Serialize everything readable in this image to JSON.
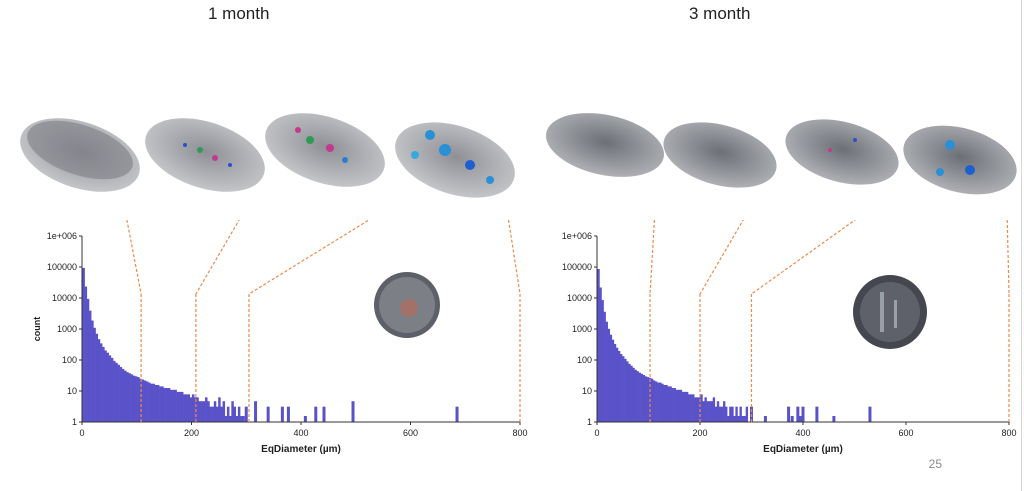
{
  "panels": [
    {
      "title": "1 month",
      "sample_shape": "round-tablet-cross-section",
      "chart_data": {
        "type": "bar",
        "xlabel": "EqDiameter (µm)",
        "ylabel": "count",
        "yscale": "log",
        "xlim": [
          0,
          800
        ],
        "ylim": [
          1,
          1000000
        ],
        "x_ticks": [
          "0",
          "200",
          "400",
          "600",
          "800"
        ],
        "y_ticks": [
          "1",
          "10",
          "100",
          "1000",
          "10000",
          "100000",
          "1e+006"
        ],
        "series": [
          {
            "color": "#5a52c8",
            "x": [
              3,
              7,
              11,
              15,
              19,
              23,
              27,
              31,
              35,
              39,
              43,
              47,
              51,
              55,
              59,
              63,
              67,
              71,
              75,
              79,
              83,
              87,
              91,
              95,
              99,
              103,
              107,
              111,
              115,
              119,
              123,
              127,
              131,
              135,
              139,
              143,
              147,
              151,
              155,
              159,
              163,
              167,
              171,
              175,
              179,
              183,
              187,
              191,
              195,
              199,
              203,
              207,
              211,
              215,
              219,
              223,
              227,
              231,
              235,
              239,
              243,
              247,
              251,
              255,
              259,
              263,
              267,
              271,
              275,
              279,
              283,
              287,
              291,
              295,
              300,
              317,
              340,
              366,
              377,
              408,
              427,
              442,
              495,
              685
            ],
            "values": [
              60000,
              15000,
              6000,
              2500,
              1200,
              700,
              450,
              300,
              220,
              170,
              130,
              110,
              90,
              75,
              60,
              52,
              45,
              38,
              33,
              29,
              26,
              24,
              22,
              20,
              19,
              18,
              16,
              15,
              14,
              13,
              12,
              11,
              11,
              10,
              10,
              9,
              9,
              8,
              8,
              8,
              7,
              7,
              7,
              6,
              6,
              6,
              5,
              5,
              5,
              4,
              5,
              4,
              4,
              3,
              3,
              3,
              4,
              3,
              2,
              2,
              3,
              2,
              4,
              2,
              3,
              1,
              2,
              1,
              3,
              2,
              1,
              2,
              1,
              1,
              2,
              3,
              2,
              2,
              2,
              1,
              2,
              2,
              3,
              2
            ]
          }
        ],
        "scan_markers_x": [
          108,
          208,
          305,
          800
        ]
      }
    },
    {
      "title": "3 month",
      "sample_shape": "tablet-with-cracks",
      "chart_data": {
        "type": "bar",
        "xlabel": "EqDiameter (µm)",
        "ylabel": "",
        "yscale": "log",
        "xlim": [
          0,
          800
        ],
        "ylim": [
          1,
          1000000
        ],
        "x_ticks": [
          "0",
          "200",
          "400",
          "600",
          "800"
        ],
        "y_ticks": [
          "1",
          "10",
          "100",
          "1000",
          "10000",
          "100000",
          "1e+006"
        ],
        "series": [
          {
            "color": "#5a52c8",
            "x": [
              3,
              7,
              11,
              15,
              19,
              23,
              27,
              31,
              35,
              39,
              43,
              47,
              51,
              55,
              59,
              63,
              67,
              71,
              75,
              79,
              83,
              87,
              91,
              95,
              99,
              103,
              107,
              111,
              115,
              119,
              123,
              127,
              131,
              135,
              139,
              143,
              147,
              151,
              155,
              159,
              163,
              167,
              171,
              175,
              179,
              183,
              187,
              191,
              195,
              199,
              203,
              207,
              211,
              215,
              219,
              223,
              227,
              231,
              235,
              239,
              243,
              247,
              251,
              255,
              259,
              263,
              267,
              271,
              275,
              279,
              283,
              287,
              291,
              300,
              327,
              372,
              379,
              390,
              395,
              400,
              427,
              460,
              530
            ],
            "values": [
              55000,
              14000,
              5500,
              2300,
              1100,
              650,
              420,
              290,
              210,
              160,
              125,
              100,
              85,
              70,
              58,
              48,
              42,
              36,
              31,
              28,
              25,
              23,
              21,
              19,
              18,
              17,
              16,
              14,
              13,
              12,
              12,
              11,
              10,
              10,
              9,
              9,
              8,
              8,
              7,
              7,
              7,
              6,
              6,
              6,
              5,
              5,
              5,
              4,
              4,
              4,
              5,
              3,
              4,
              3,
              3,
              3,
              4,
              2,
              3,
              2,
              2,
              3,
              2,
              1,
              2,
              2,
              1,
              2,
              1,
              2,
              1,
              1,
              2,
              2,
              1,
              2,
              1,
              2,
              1,
              2,
              2,
              1,
              2
            ]
          }
        ],
        "scan_markers_x": [
          103,
          200,
          300,
          800
        ]
      }
    }
  ],
  "slide_number": "25",
  "colors": {
    "bar": "#5a52c8",
    "marker": "#ee8a48",
    "axis": "#333333"
  },
  "icons": [
    "pore-scan-render"
  ]
}
